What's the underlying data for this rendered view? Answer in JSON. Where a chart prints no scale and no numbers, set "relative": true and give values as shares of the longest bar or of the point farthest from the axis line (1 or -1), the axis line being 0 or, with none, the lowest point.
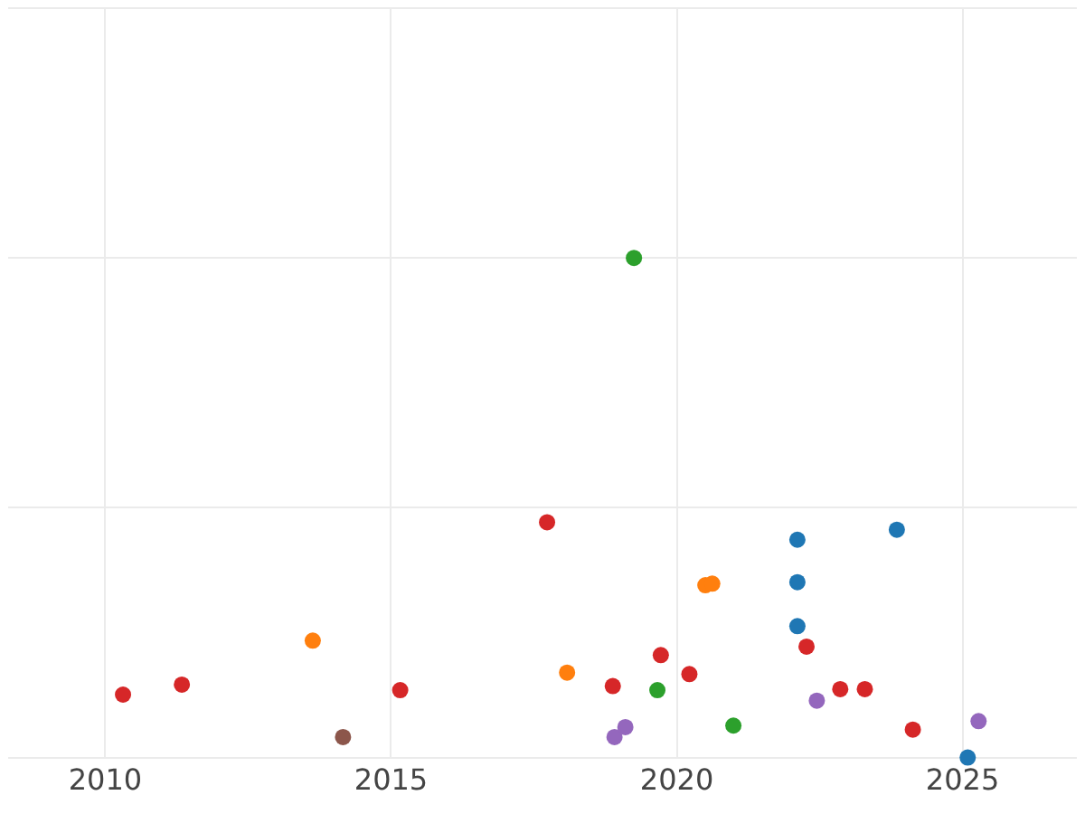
{
  "chart_data": {
    "type": "scatter",
    "relative": true,
    "grid": true,
    "legend": false,
    "marker": "circle",
    "xlim": [
      2008.3,
      2027.0
    ],
    "xticks": [
      2010,
      2015,
      2020,
      2025
    ],
    "series": [
      {
        "color": "#1f77b4",
        "x": [
          2022.11,
          2022.11,
          2022.11,
          2023.85,
          2025.09
        ],
        "values": [
          0.436,
          0.351,
          0.263,
          0.456,
          0
        ]
      },
      {
        "color": "#ff7f0e",
        "x": [
          2013.63,
          2018.08,
          2020.5,
          2020.62
        ],
        "values": [
          0.234,
          0.17,
          0.345,
          0.348
        ]
      },
      {
        "color": "#2ca02c",
        "x": [
          2019.25,
          2019.66,
          2020.99
        ],
        "values": [
          1.0,
          0.135,
          0.064
        ]
      },
      {
        "color": "#d62728",
        "x": [
          2010.31,
          2011.34,
          2015.16,
          2017.73,
          2018.88,
          2019.72,
          2020.22,
          2022.27,
          2022.86,
          2023.29,
          2024.13
        ],
        "values": [
          0.126,
          0.146,
          0.135,
          0.471,
          0.143,
          0.205,
          0.167,
          0.222,
          0.137,
          0.137,
          0.056
        ]
      },
      {
        "color": "#9467bd",
        "x": [
          2018.91,
          2019.1,
          2022.45,
          2025.28
        ],
        "values": [
          0.041,
          0.061,
          0.114,
          0.073
        ]
      },
      {
        "color": "#8c564b",
        "x": [
          2014.16
        ],
        "values": [
          0.041
        ]
      }
    ]
  }
}
